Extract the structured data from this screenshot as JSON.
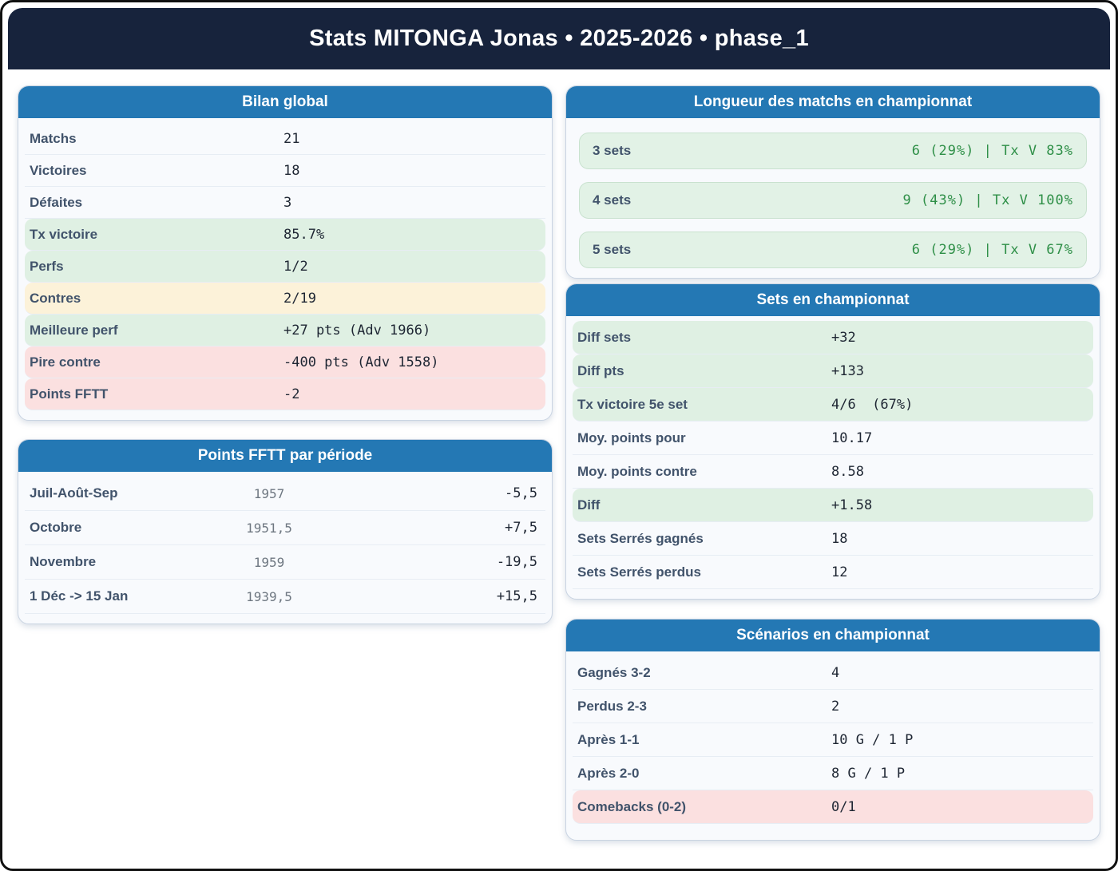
{
  "header": {
    "title": "Stats MITONGA Jonas • 2025-2026 • phase_1"
  },
  "colors": {
    "page_header_bg": "#17233C",
    "card_header_bg": "#2478B4",
    "card_bg": "#F8FAFD",
    "highlight_green": "#DFF0E3",
    "highlight_yellow": "#FCF2D9",
    "highlight_red": "#FBE0E0",
    "green_value_text": "#2E8F47",
    "label_text": "#41536B",
    "value_text": "#1E2633"
  },
  "cards": {
    "bilan": {
      "title": "Bilan global",
      "rows": [
        {
          "label": "Matchs",
          "value": "21",
          "highlight": "none"
        },
        {
          "label": "Victoires",
          "value": "18",
          "highlight": "none"
        },
        {
          "label": "Défaites",
          "value": "3",
          "highlight": "none"
        },
        {
          "label": "Tx victoire",
          "value": "85.7%",
          "highlight": "green"
        },
        {
          "label": "Perfs",
          "value": "1/2",
          "highlight": "green"
        },
        {
          "label": "Contres",
          "value": "2/19",
          "highlight": "yellow"
        },
        {
          "label": "Meilleure perf",
          "value": "+27 pts (Adv 1966)",
          "highlight": "green"
        },
        {
          "label": "Pire contre",
          "value": "-400 pts (Adv 1558)",
          "highlight": "red"
        },
        {
          "label": "Points FFTT",
          "value": "-2",
          "highlight": "red"
        }
      ]
    },
    "fftt_periodes": {
      "title": "Points FFTT par période",
      "rows": [
        {
          "label": "Juil-Août-Sep",
          "points": "1957",
          "delta": "-5,5"
        },
        {
          "label": "Octobre",
          "points": "1951,5",
          "delta": "+7,5"
        },
        {
          "label": "Novembre",
          "points": "1959",
          "delta": "-19,5"
        },
        {
          "label": "1 Déc -> 15 Jan",
          "points": "1939,5",
          "delta": "+15,5"
        }
      ]
    },
    "longueur": {
      "title": "Longueur des matchs en championnat",
      "rows": [
        {
          "label": "3 sets",
          "value": "6 (29%) | Tx V 83%"
        },
        {
          "label": "4 sets",
          "value": "9 (43%) | Tx V 100%"
        },
        {
          "label": "5 sets",
          "value": "6 (29%) | Tx V 67%"
        }
      ]
    },
    "sets": {
      "title": "Sets en championnat",
      "rows": [
        {
          "label": "Diff sets",
          "value": "+32",
          "highlight": "green"
        },
        {
          "label": "Diff pts",
          "value": "+133",
          "highlight": "green"
        },
        {
          "label": "Tx victoire 5e set",
          "value": "4/6  (67%)",
          "highlight": "green"
        },
        {
          "label": "Moy. points pour",
          "value": "10.17",
          "highlight": "none"
        },
        {
          "label": "Moy. points contre",
          "value": "8.58",
          "highlight": "none"
        },
        {
          "label": "Diff",
          "value": "+1.58",
          "highlight": "green"
        },
        {
          "label": "Sets Serrés gagnés",
          "value": "18",
          "highlight": "none"
        },
        {
          "label": "Sets Serrés perdus",
          "value": "12",
          "highlight": "none"
        }
      ]
    },
    "scenarios": {
      "title": "Scénarios en championnat",
      "rows": [
        {
          "label": "Gagnés 3-2",
          "value": "4",
          "highlight": "none"
        },
        {
          "label": "Perdus 2-3",
          "value": "2",
          "highlight": "none"
        },
        {
          "label": "Après 1-1",
          "value": "10 G / 1 P",
          "highlight": "none"
        },
        {
          "label": "Après 2-0",
          "value": "8 G / 1 P",
          "highlight": "none"
        },
        {
          "label": "Comebacks (0-2)",
          "value": "0/1",
          "highlight": "red"
        }
      ]
    }
  }
}
